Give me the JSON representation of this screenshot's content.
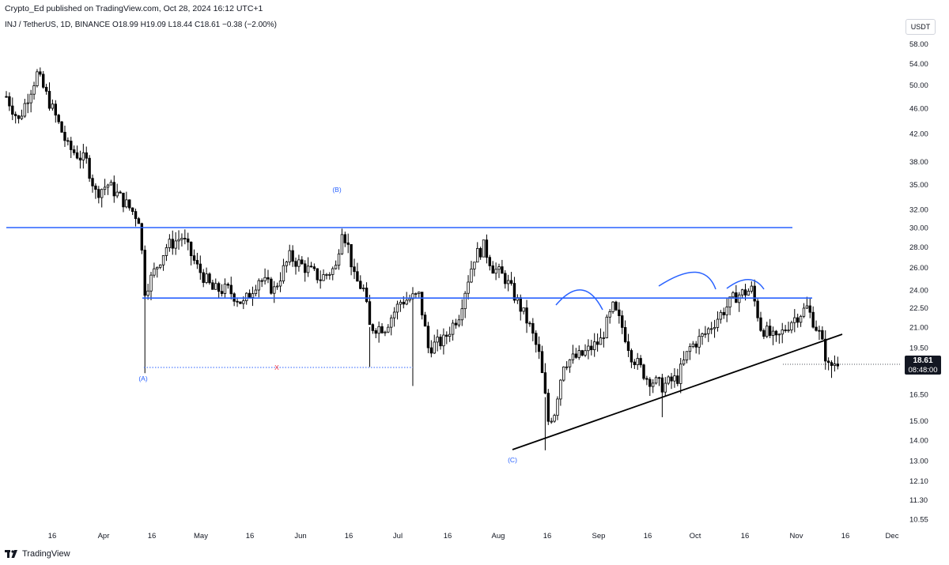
{
  "header": {
    "published": "Crypto_Ed published on TradingView.com, Oct 28, 2024 16:12 UTC+1",
    "symbol": "INJ / TetherUS, 1D, BINANCE",
    "ohlc": "O18.99 H19.09 L18.44 C18.61 −0.38 (−2.00%)"
  },
  "currency": "USDT",
  "price_tag": {
    "price": "18.61",
    "countdown": "08:48:00"
  },
  "footer": {
    "brand": "TradingView"
  },
  "colors": {
    "up": "#ffffff",
    "down": "#000000",
    "level": "#2962ff",
    "trend": "#000000",
    "annot": "#2962ff",
    "x_mark": "#f23645"
  },
  "chart_data": {
    "type": "line",
    "series": [
      {
        "name": "",
        "x": [
          "Mar 16",
          "Apr 1",
          "Apr 10",
          "Apr 16",
          "May 1",
          "May 16",
          "Jun 1",
          "Jun 10",
          "Jun 16",
          "Jul 1",
          "Jul 16",
          "Aug 1",
          "Aug 5",
          "Aug 16",
          "Aug 26",
          "Sep 1",
          "Sep 7",
          "Sep 16",
          "Oct 1",
          "Oct 16",
          "Oct 24",
          "Oct 28"
        ],
        "values": [
          48,
          38,
          31,
          28,
          25,
          24,
          27,
          31,
          24,
          23,
          27,
          22,
          13.5,
          20,
          22,
          18,
          16,
          20,
          24,
          22,
          18,
          18.61
        ]
      }
    ],
    "y_ticks": [
      "58.00",
      "54.00",
      "50.00",
      "46.00",
      "42.00",
      "38.00",
      "35.00",
      "32.00",
      "30.00",
      "28.00",
      "26.00",
      "24.00",
      "22.50",
      "21.00",
      "19.50",
      "18.00",
      "16.50",
      "15.00",
      "14.00",
      "13.00",
      "12.10",
      "11.30",
      "10.55"
    ],
    "x_ticks": [
      "16",
      "Apr",
      "16",
      "May",
      "16",
      "Jun",
      "16",
      "Jul",
      "16",
      "Aug",
      "16",
      "Sep",
      "16",
      "Oct",
      "16",
      "Nov",
      "16",
      "Dec"
    ],
    "y_scale": "log",
    "levels": [
      30.0,
      23.3
    ],
    "labels": [
      "(A)",
      "(B)",
      "(C)",
      "X"
    ]
  }
}
